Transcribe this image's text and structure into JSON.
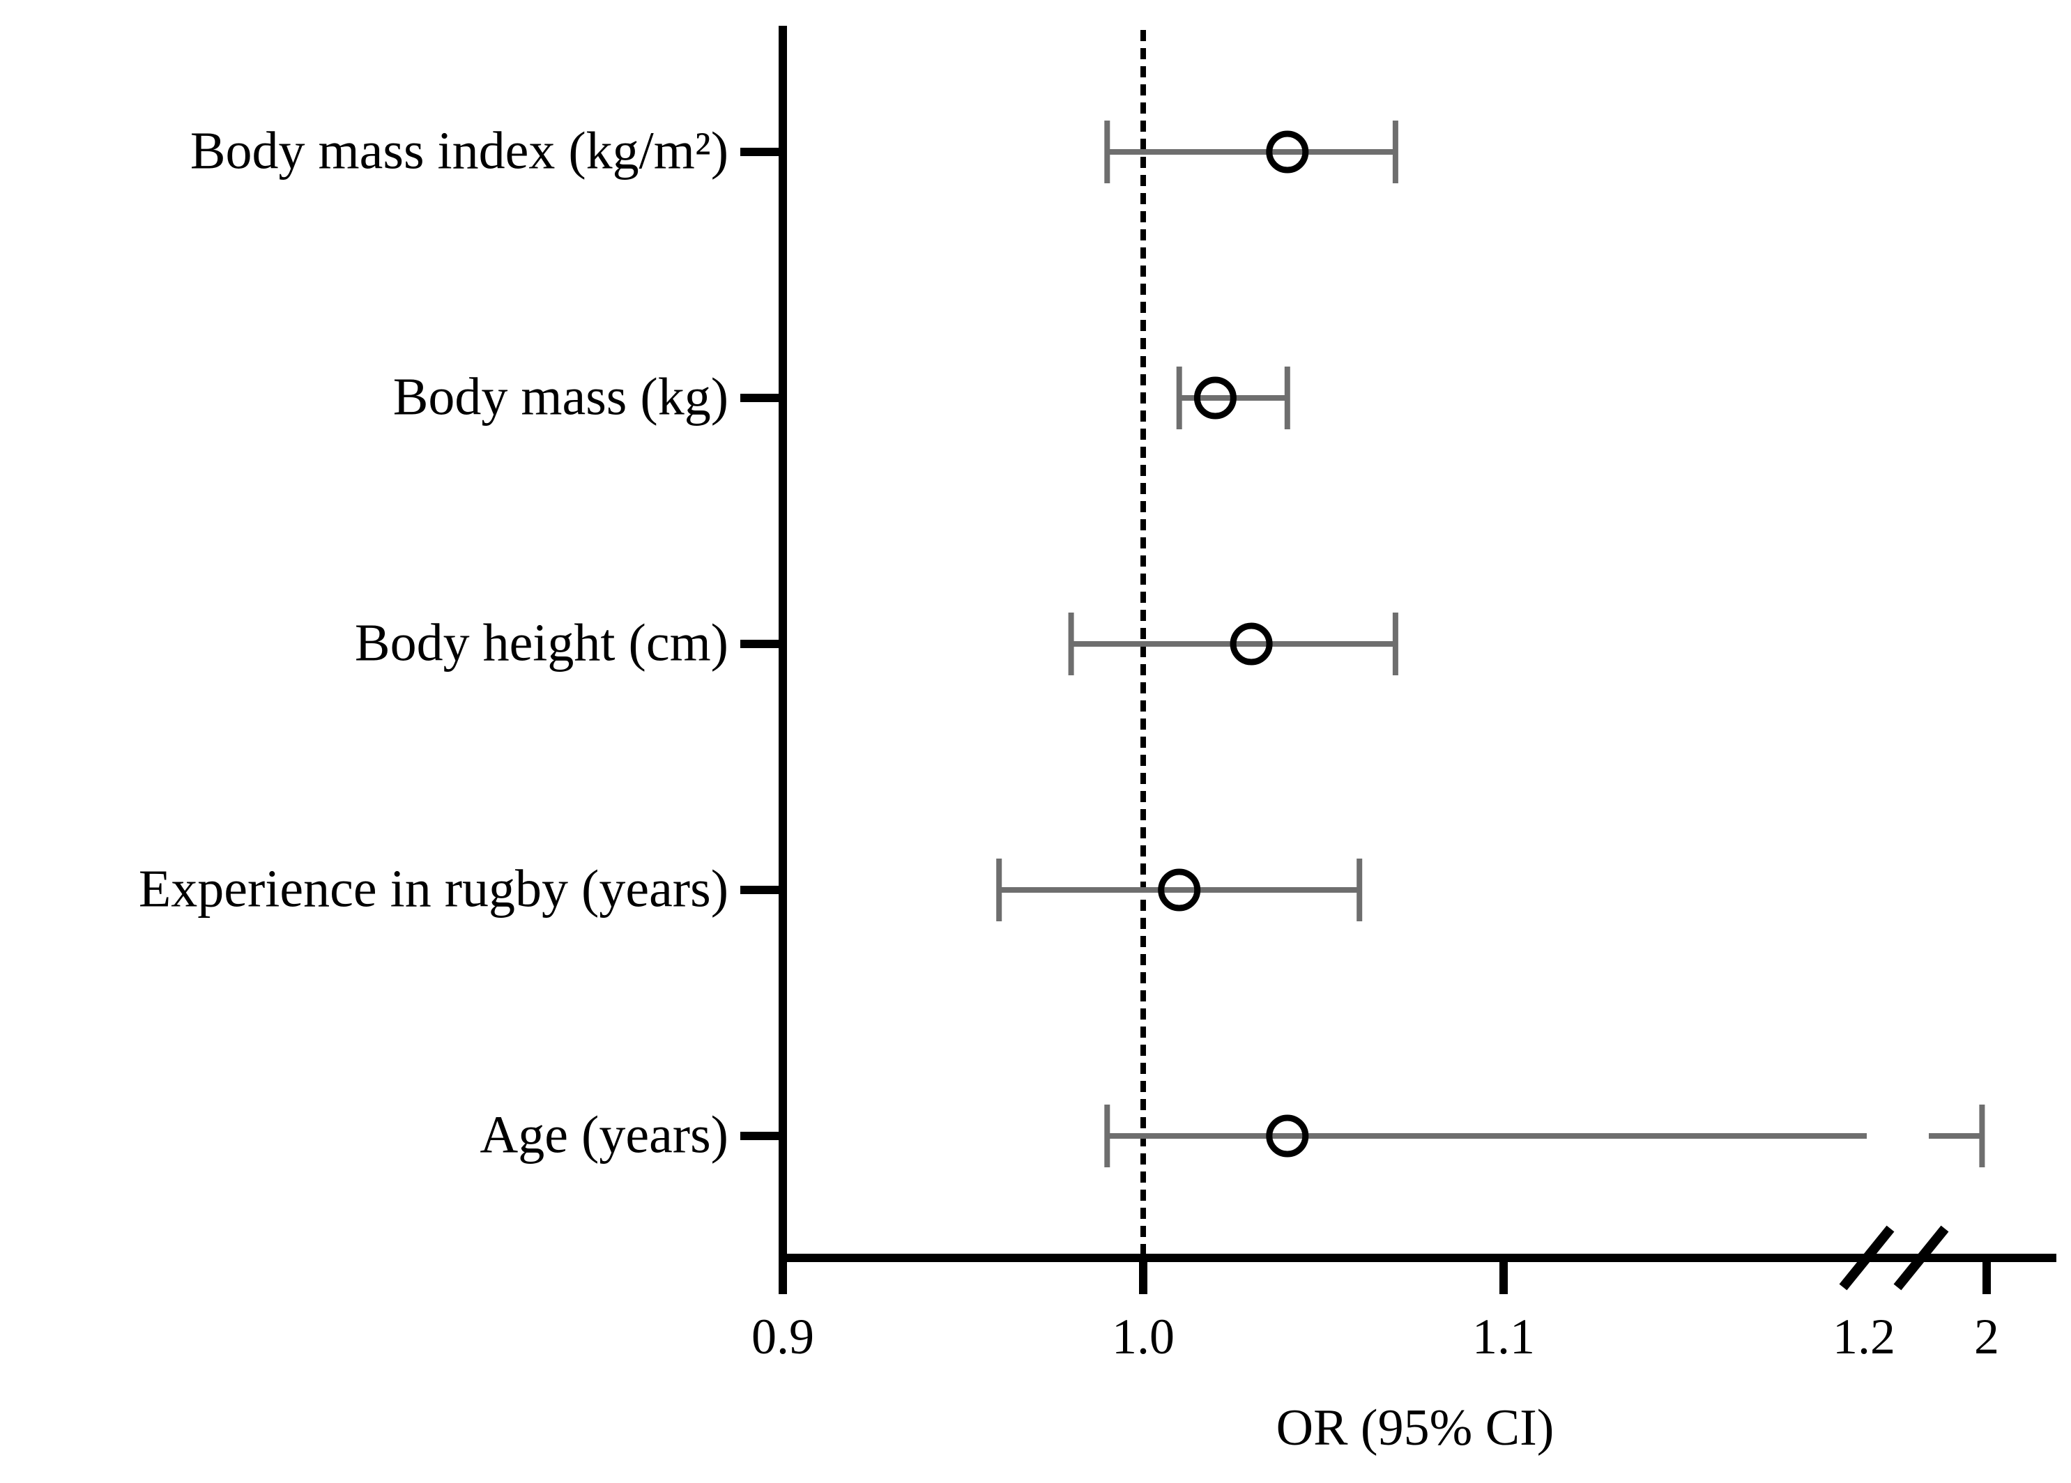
{
  "chart_data": {
    "type": "scatter",
    "subtype": "forest-plot",
    "xlabel": "OR (95% CI)",
    "ylabel": "",
    "x_axis": {
      "ticks": [
        "0.9",
        "1.0",
        "1.1",
        "1.2",
        "2"
      ],
      "tick_values": [
        0.9,
        1.0,
        1.1,
        1.2,
        2
      ],
      "axis_break_between": [
        1.2,
        2
      ],
      "reference_line_value": 1.0,
      "reference_line_style": "dotted"
    },
    "rows": [
      {
        "label": "Body mass index (kg/m²)",
        "or": 1.04,
        "ci_low": 0.99,
        "ci_high": 1.07
      },
      {
        "label": "Body mass (kg)",
        "or": 1.02,
        "ci_low": 1.01,
        "ci_high": 1.04
      },
      {
        "label": "Body height (cm)",
        "or": 1.03,
        "ci_low": 0.98,
        "ci_high": 1.07
      },
      {
        "label": "Experience in rugby (years)",
        "or": 1.01,
        "ci_low": 0.96,
        "ci_high": 1.06
      },
      {
        "label": "Age (years)",
        "or": 1.04,
        "ci_low": 0.99,
        "ci_high": 1.97
      }
    ],
    "marker": "open-circle",
    "legend": "none",
    "grid": "off",
    "colors": {
      "axis": "#000000",
      "error_bar": "#6e6e6e",
      "marker_stroke": "#000000",
      "marker_fill": "none",
      "text": "#000000",
      "background": "#ffffff"
    }
  }
}
